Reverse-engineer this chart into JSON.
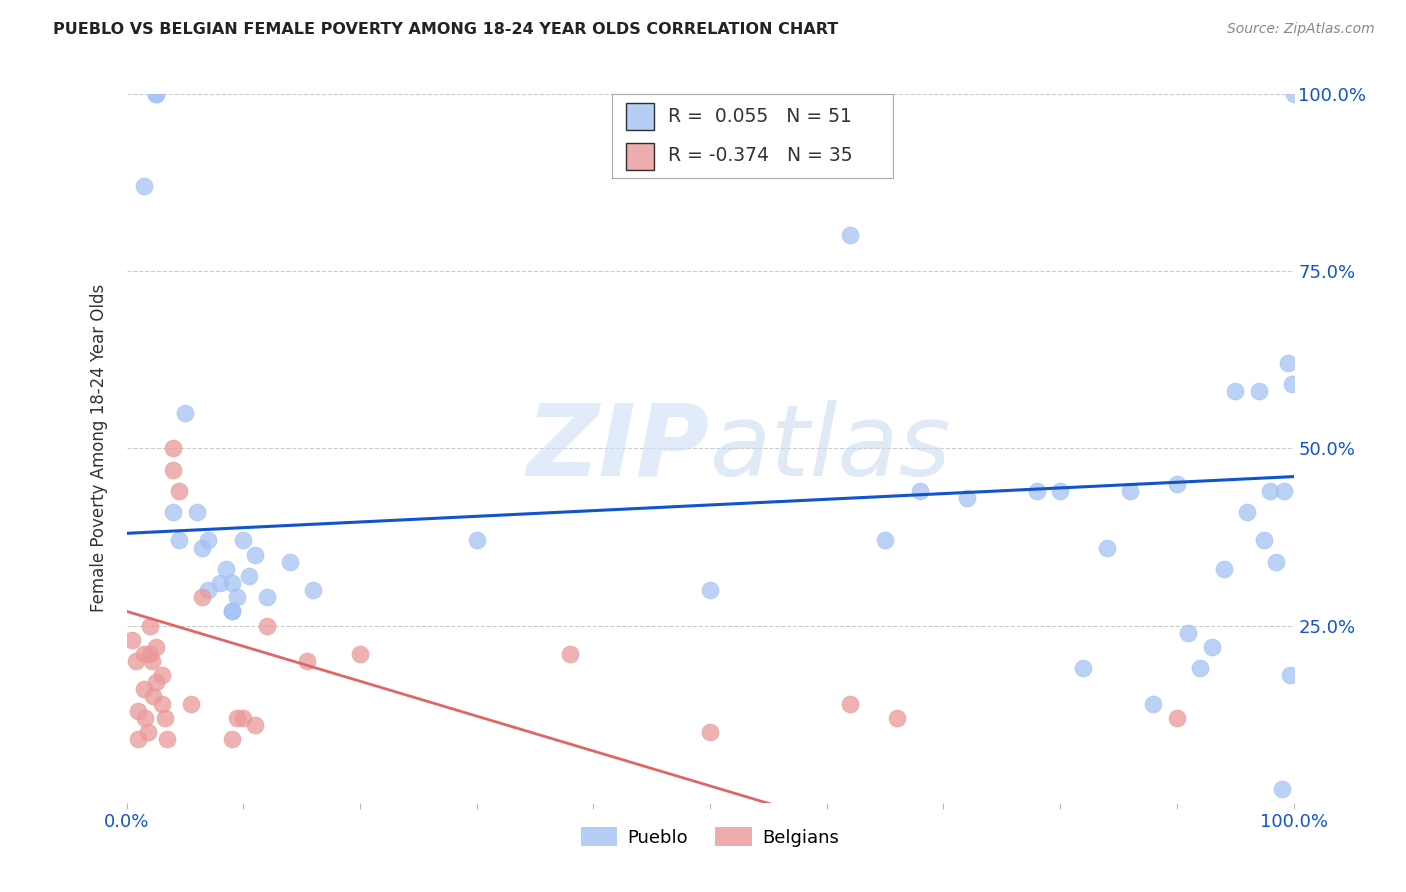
{
  "title": "PUEBLO VS BELGIAN FEMALE POVERTY AMONG 18-24 YEAR OLDS CORRELATION CHART",
  "source": "Source: ZipAtlas.com",
  "ylabel": "Female Poverty Among 18-24 Year Olds",
  "pueblo_R": "0.055",
  "pueblo_N": "51",
  "belgians_R": "-0.374",
  "belgians_N": "35",
  "pueblo_color": "#a4c2f4",
  "belgians_color": "#ea9999",
  "pueblo_line_color": "#1155cc",
  "belgians_line_color": "#e06666",
  "watermark_color": "#d0dff5",
  "background_color": "#ffffff",
  "grid_color": "#cccccc",
  "xlim": [
    0.0,
    1.0
  ],
  "ylim": [
    0.0,
    1.0
  ],
  "pueblo_x": [
    0.015,
    0.025,
    0.025,
    0.04,
    0.045,
    0.05,
    0.06,
    0.065,
    0.07,
    0.07,
    0.08,
    0.085,
    0.09,
    0.09,
    0.09,
    0.095,
    0.1,
    0.105,
    0.11,
    0.12,
    0.14,
    0.16,
    0.3,
    0.5,
    0.62,
    0.65,
    0.68,
    0.72,
    0.78,
    0.8,
    0.82,
    0.84,
    0.86,
    0.88,
    0.9,
    0.91,
    0.92,
    0.93,
    0.94,
    0.95,
    0.96,
    0.97,
    0.975,
    0.98,
    0.985,
    0.99,
    0.992,
    0.995,
    0.997,
    0.999,
    1.0
  ],
  "pueblo_y": [
    0.87,
    1.0,
    1.0,
    0.41,
    0.37,
    0.55,
    0.41,
    0.36,
    0.3,
    0.37,
    0.31,
    0.33,
    0.31,
    0.27,
    0.27,
    0.29,
    0.37,
    0.32,
    0.35,
    0.29,
    0.34,
    0.3,
    0.37,
    0.3,
    0.8,
    0.37,
    0.44,
    0.43,
    0.44,
    0.44,
    0.19,
    0.36,
    0.44,
    0.14,
    0.45,
    0.24,
    0.19,
    0.22,
    0.33,
    0.58,
    0.41,
    0.58,
    0.37,
    0.44,
    0.34,
    0.02,
    0.44,
    0.62,
    0.18,
    0.59,
    1.0
  ],
  "belgians_x": [
    0.005,
    0.008,
    0.01,
    0.01,
    0.015,
    0.015,
    0.016,
    0.018,
    0.02,
    0.02,
    0.022,
    0.023,
    0.025,
    0.025,
    0.03,
    0.03,
    0.033,
    0.035,
    0.04,
    0.04,
    0.045,
    0.055,
    0.065,
    0.09,
    0.095,
    0.1,
    0.11,
    0.12,
    0.155,
    0.2,
    0.38,
    0.5,
    0.62,
    0.66,
    0.9
  ],
  "belgians_y": [
    0.23,
    0.2,
    0.13,
    0.09,
    0.21,
    0.16,
    0.12,
    0.1,
    0.25,
    0.21,
    0.2,
    0.15,
    0.22,
    0.17,
    0.18,
    0.14,
    0.12,
    0.09,
    0.47,
    0.5,
    0.44,
    0.14,
    0.29,
    0.09,
    0.12,
    0.12,
    0.11,
    0.25,
    0.2,
    0.21,
    0.21,
    0.1,
    0.14,
    0.12,
    0.12
  ]
}
